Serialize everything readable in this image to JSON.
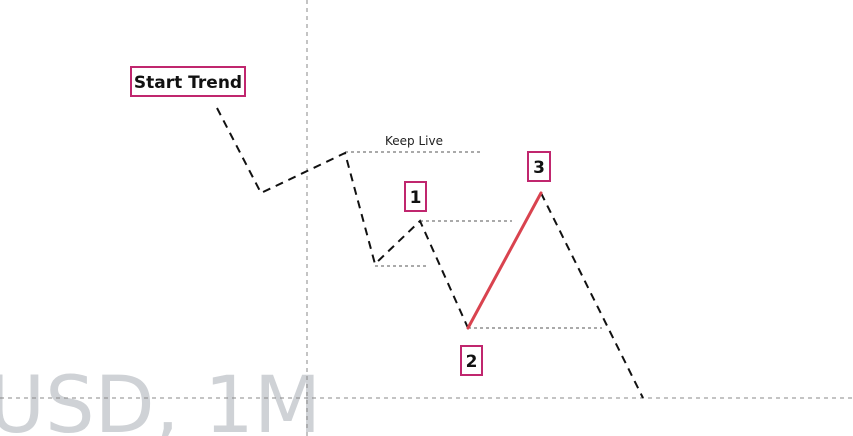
{
  "chart_data": {
    "type": "line",
    "watermark": "USD, 1M",
    "wave_labels": [
      {
        "id": "start",
        "text": "Start Trend"
      },
      {
        "id": "p1",
        "text": "1"
      },
      {
        "id": "p2",
        "text": "2"
      },
      {
        "id": "p3",
        "text": "3"
      }
    ],
    "annotations": [
      {
        "id": "keep-live",
        "text": "Keep Live"
      }
    ],
    "colors": {
      "path": "#111111",
      "highlight": "#d9434f",
      "label_border": "#c0266e",
      "guide": "#555555",
      "crosshair": "#888888",
      "watermark": "#cfd2d6"
    }
  }
}
